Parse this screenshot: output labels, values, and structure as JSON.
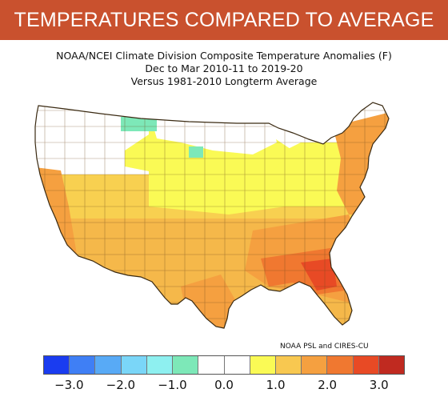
{
  "banner": {
    "title": "TEMPERATURES COMPARED TO AVERAGE",
    "color": "#c9512e"
  },
  "map": {
    "title_lines": [
      "NOAA/NCEI Climate Division Composite Temperature Anomalies (F)",
      "Dec to Mar 2010-11 to 2019-20",
      "Versus 1981-2010 Longterm Average"
    ],
    "region": "Contiguous United States",
    "shading": "climate-division temperature anomaly",
    "credit": "NOAA PSL and CIRES-CU"
  },
  "legend": {
    "colors": [
      "#1a3cf0",
      "#3f7ff5",
      "#58aaf6",
      "#7ad6f8",
      "#8ef0f0",
      "#7de8b8",
      "#ffffff",
      "#ffffff",
      "#fafa55",
      "#f8c850",
      "#f5a040",
      "#f07830",
      "#e84a25",
      "#c02a20"
    ],
    "tick_labels": [
      "−3.0",
      "−2.0",
      "−1.0",
      "0.0",
      "1.0",
      "2.0",
      "3.0"
    ],
    "tick_values": [
      -3.0,
      -2.0,
      -1.0,
      0.0,
      1.0,
      2.0,
      3.0
    ],
    "range": [
      -3.5,
      3.5
    ]
  }
}
